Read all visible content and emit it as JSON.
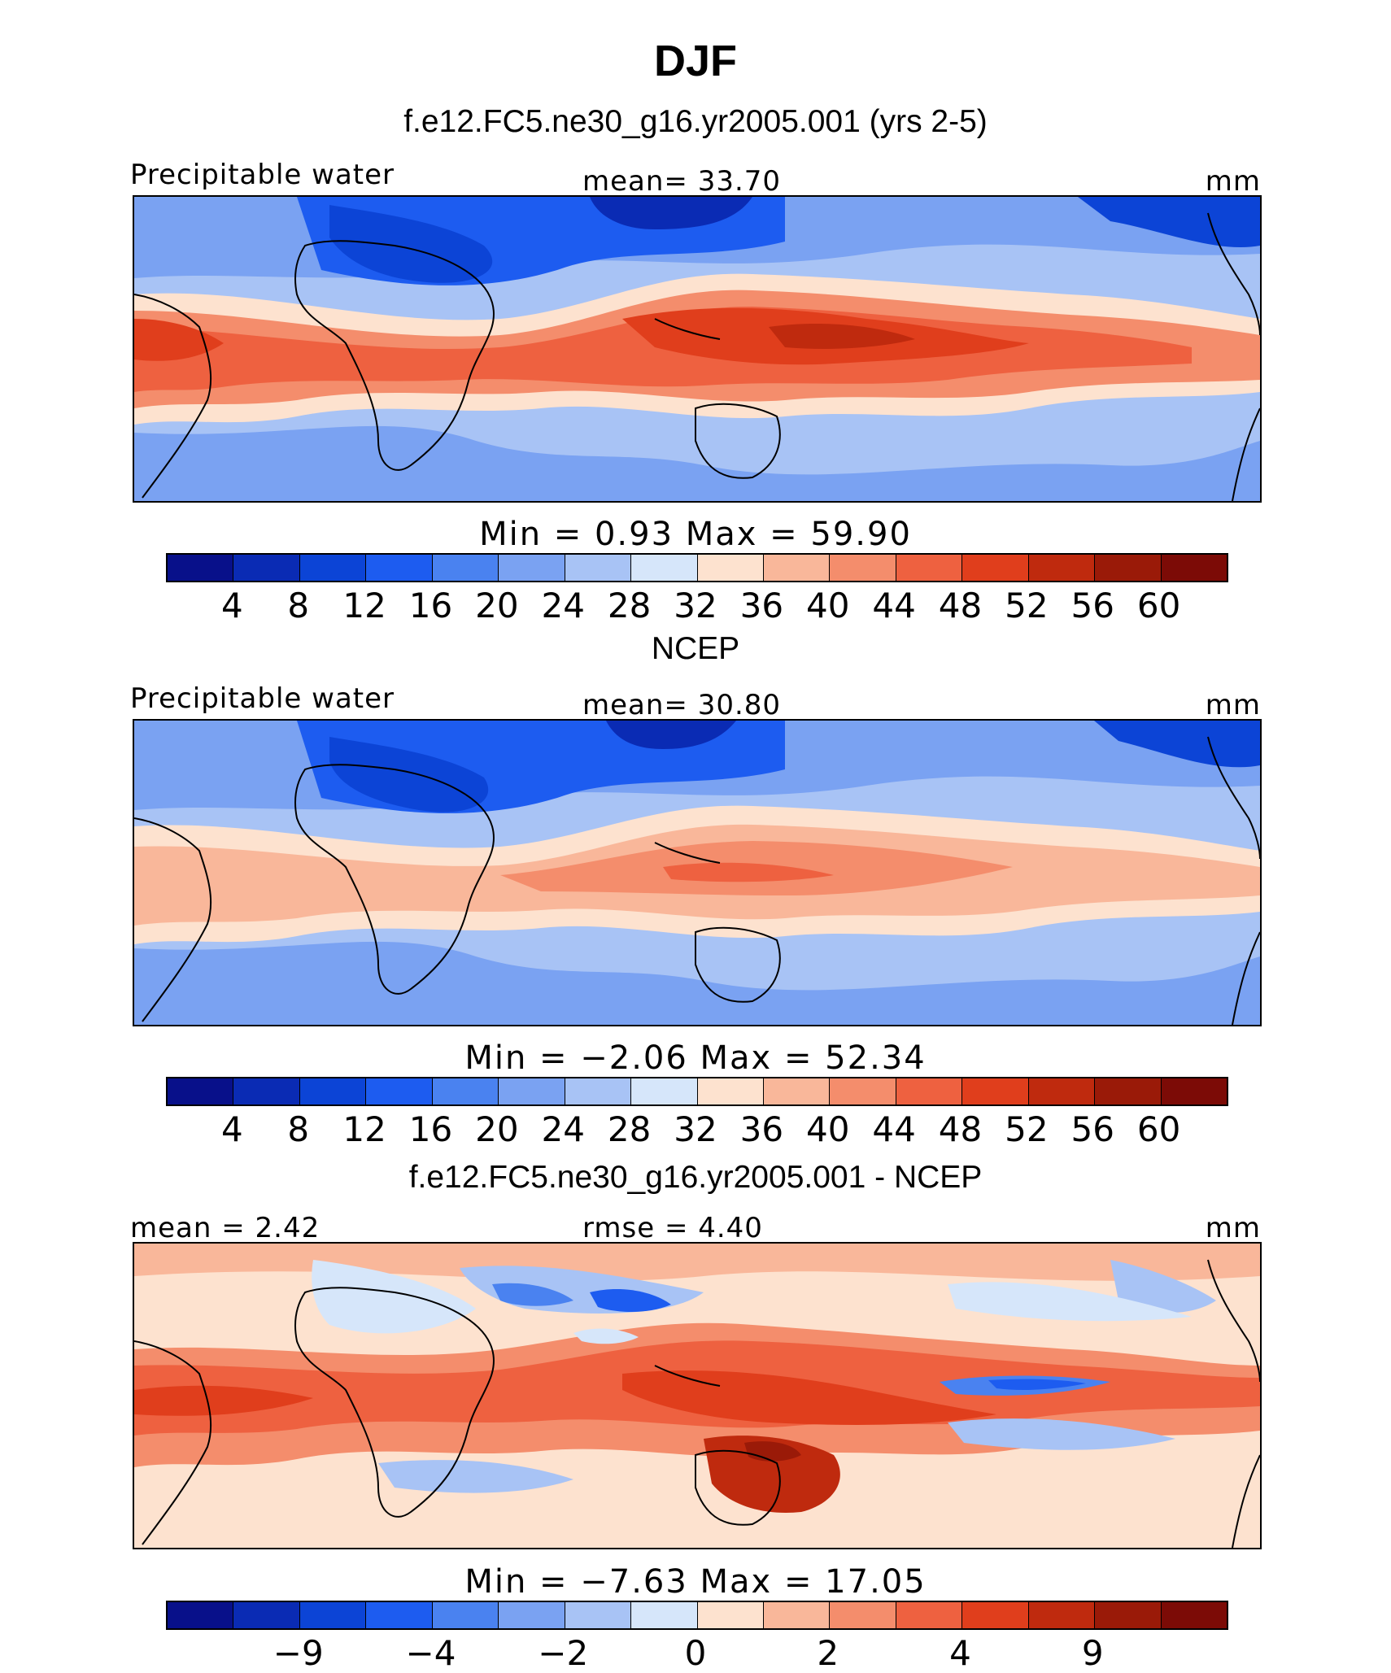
{
  "figure": {
    "title": "DJF",
    "colors": {
      "abs_scale": [
        "#08108a",
        "#0a2bb4",
        "#0c44d6",
        "#1d5cf0",
        "#4a82f0",
        "#7aa2f2",
        "#a8c3f5",
        "#d6e6fa",
        "#fde2cf",
        "#f9b79a",
        "#f48d6c",
        "#ee6140",
        "#e03e1c",
        "#bf2a0e",
        "#9a1a08",
        "#7c0b06"
      ],
      "diff_scale": [
        "#08108a",
        "#0a2bb4",
        "#0c44d6",
        "#1d5cf0",
        "#4a82f0",
        "#7aa2f2",
        "#a8c3f5",
        "#d6e6fa",
        "#fde2cf",
        "#f9b79a",
        "#f48d6c",
        "#ee6140",
        "#e03e1c",
        "#bf2a0e",
        "#9a1a08",
        "#7c0b06"
      ]
    },
    "panels": [
      {
        "id": "model",
        "title": "f.e12.FC5.ne30_g16.yr2005.001 (yrs 2-5)",
        "left_label": "Precipitable water",
        "center_label": "mean=   33.70",
        "right_label": "mm",
        "minmax": "Min =    0.93  Max =   59.90",
        "colorbar_ticks": [
          "4",
          "8",
          "12",
          "16",
          "20",
          "24",
          "28",
          "32",
          "36",
          "40",
          "44",
          "48",
          "52",
          "56",
          "60"
        ]
      },
      {
        "id": "ncep",
        "title": "NCEP",
        "left_label": "Precipitable water",
        "center_label": "mean=   30.80",
        "right_label": "mm",
        "minmax": "Min =   −2.06  Max =   52.34",
        "colorbar_ticks": [
          "4",
          "8",
          "12",
          "16",
          "20",
          "24",
          "28",
          "32",
          "36",
          "40",
          "44",
          "48",
          "52",
          "56",
          "60"
        ]
      },
      {
        "id": "diff",
        "title": "f.e12.FC5.ne30_g16.yr2005.001 - NCEP",
        "left_label": "mean =    2.42",
        "center_label": "rmse =    4.40",
        "right_label": "mm",
        "minmax": "Min =   −7.63  Max =   17.05",
        "colorbar_ticks": [
          "−9",
          "−4",
          "−2",
          "0",
          "2",
          "4",
          "9"
        ]
      }
    ]
  }
}
